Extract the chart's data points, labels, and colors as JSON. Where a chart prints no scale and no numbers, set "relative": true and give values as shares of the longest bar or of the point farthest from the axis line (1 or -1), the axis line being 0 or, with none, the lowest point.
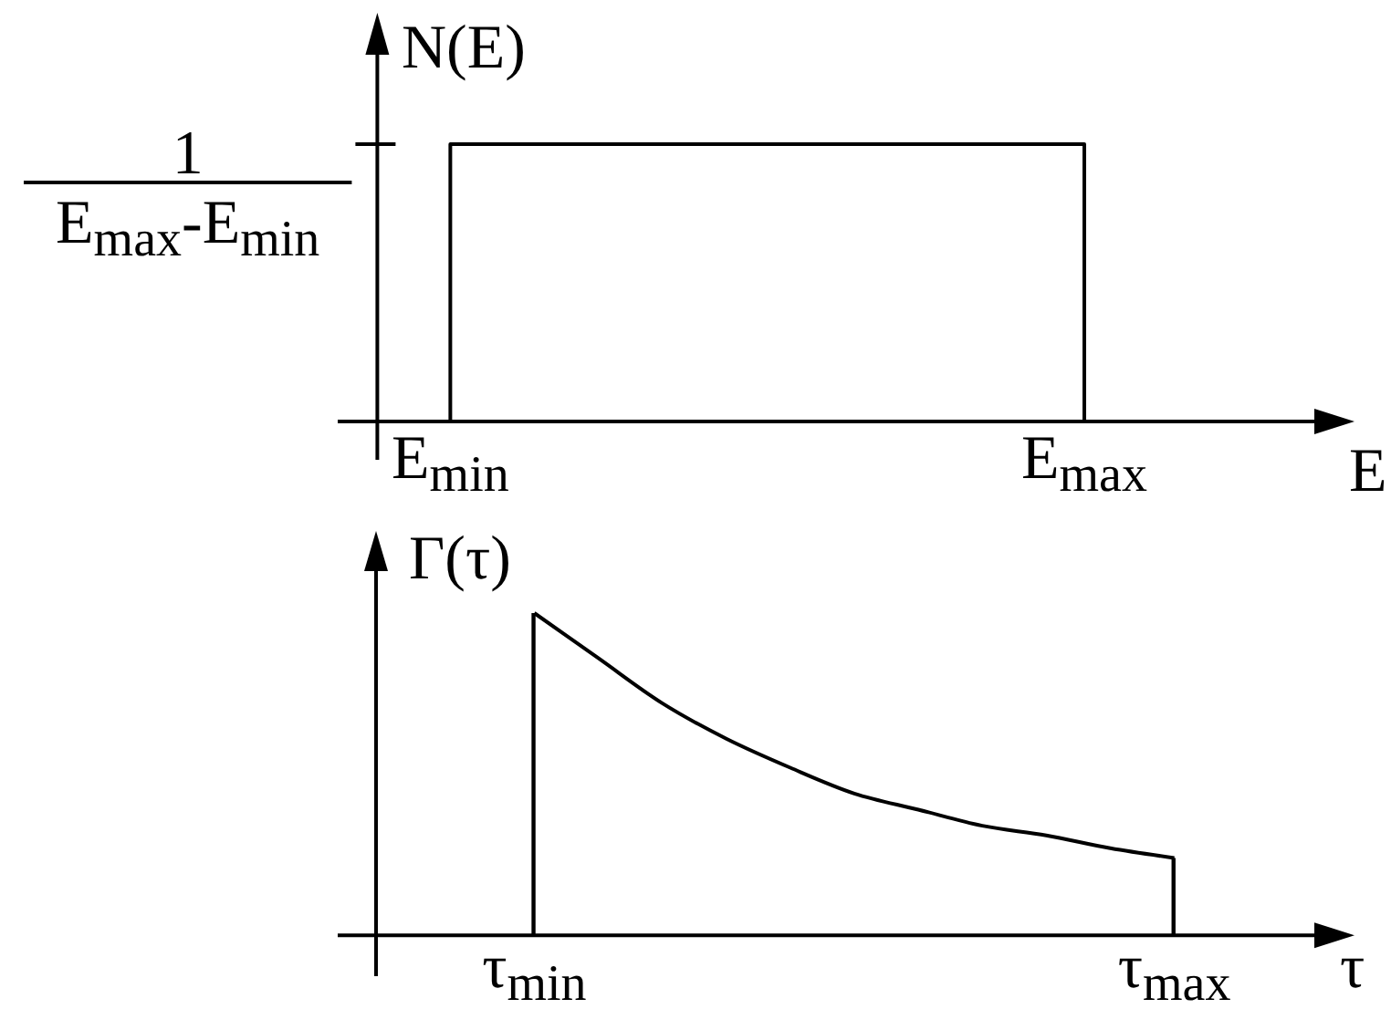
{
  "chart_data": [
    {
      "type": "step",
      "ylabel": "N(E)",
      "xlabel": "E",
      "relative": true,
      "color": "#000000",
      "categories": [
        null,
        "E$_{min}$",
        null,
        null,
        null,
        null,
        null,
        null,
        null,
        null,
        "E$_{max}$"
      ],
      "values": [
        0,
        1,
        1,
        1,
        1,
        1,
        1,
        1,
        1,
        1,
        0
      ],
      "annotations": [
        "1 E$_{max}$-E$_{min}$"
      ]
    },
    {
      "type": "line",
      "ylabel": "Γ(τ)",
      "xlabel": "τ",
      "relative": true,
      "categories": [
        "τ$_{min}$",
        null,
        null,
        null,
        null,
        null,
        null,
        null,
        null,
        null,
        "τ$_{max}$"
      ],
      "series": [
        {
          "color": "#000000",
          "values": [
            1,
            0.86,
            0.72,
            0.61,
            0.52,
            0.44,
            0.39,
            0.34,
            0.31,
            0.27,
            0.24
          ]
        },
        {
          "type": "bar",
          "color": "#000000",
          "values": [
            1,
            null,
            null,
            null,
            null,
            null,
            null,
            null,
            null,
            null,
            0.24
          ]
        }
      ]
    }
  ]
}
